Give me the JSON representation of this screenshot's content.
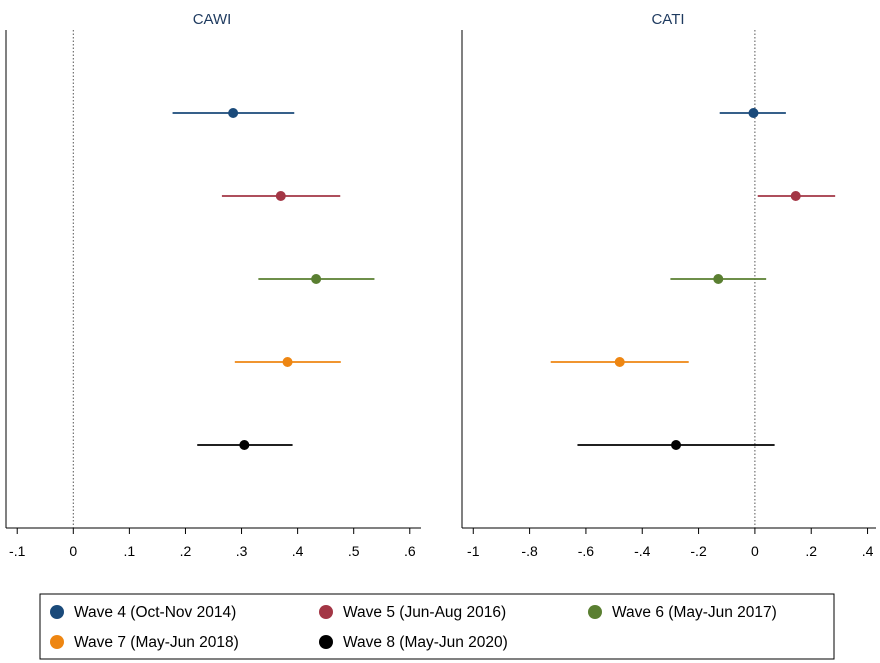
{
  "chart_data": [
    {
      "type": "scatter",
      "title": "CAWI",
      "xlim": [
        -0.12,
        0.62
      ],
      "ticks": [
        -0.1,
        0,
        0.1,
        0.2,
        0.3,
        0.4,
        0.5,
        0.6
      ],
      "tick_labels": [
        "-.1",
        "0",
        ".1",
        ".2",
        ".3",
        ".4",
        ".5",
        ".6"
      ],
      "reference_line": 0,
      "series": [
        {
          "name": "Wave 4 (Oct-Nov 2014)",
          "color": "#1a4a7a",
          "estimate": 0.285,
          "ci": [
            0.177,
            0.394
          ]
        },
        {
          "name": "Wave 5 (Jun-Aug 2016)",
          "color": "#a33645",
          "estimate": 0.37,
          "ci": [
            0.265,
            0.476
          ]
        },
        {
          "name": "Wave 6 (May-Jun 2017)",
          "color": "#5a7f31",
          "estimate": 0.433,
          "ci": [
            0.33,
            0.537
          ]
        },
        {
          "name": "Wave 7 (May-Jun 2018)",
          "color": "#ee8612",
          "estimate": 0.382,
          "ci": [
            0.288,
            0.477
          ]
        },
        {
          "name": "Wave 8 (May-Jun 2020)",
          "color": "#000000",
          "estimate": 0.305,
          "ci": [
            0.221,
            0.391
          ]
        }
      ]
    },
    {
      "type": "scatter",
      "title": "CATI",
      "xlim": [
        -1.04,
        0.43
      ],
      "ticks": [
        -1,
        -0.8,
        -0.6,
        -0.4,
        -0.2,
        0,
        0.2,
        0.4
      ],
      "tick_labels": [
        "-1",
        "-.8",
        "-.6",
        "-.4",
        "-.2",
        "0",
        ".2",
        ".4"
      ],
      "reference_line": 0,
      "series": [
        {
          "name": "Wave 4 (Oct-Nov 2014)",
          "color": "#1a4a7a",
          "estimate": -0.005,
          "ci": [
            -0.125,
            0.11
          ]
        },
        {
          "name": "Wave 5 (Jun-Aug 2016)",
          "color": "#a33645",
          "estimate": 0.145,
          "ci": [
            0.01,
            0.285
          ]
        },
        {
          "name": "Wave 6 (May-Jun 2017)",
          "color": "#5a7f31",
          "estimate": -0.13,
          "ci": [
            -0.3,
            0.04
          ]
        },
        {
          "name": "Wave 7 (May-Jun 2018)",
          "color": "#ee8612",
          "estimate": -0.48,
          "ci": [
            -0.725,
            -0.235
          ]
        },
        {
          "name": "Wave 8 (May-Jun 2020)",
          "color": "#000000",
          "estimate": -0.28,
          "ci": [
            -0.63,
            0.07
          ]
        }
      ]
    }
  ],
  "legend": {
    "placement": "bottom",
    "items": [
      {
        "label": "Wave 4 (Oct-Nov 2014)",
        "color": "#1a4a7a"
      },
      {
        "label": "Wave 5 (Jun-Aug 2016)",
        "color": "#a33645"
      },
      {
        "label": "Wave 6 (May-Jun 2017)",
        "color": "#5a7f31"
      },
      {
        "label": "Wave 7 (May-Jun 2018)",
        "color": "#ee8612"
      },
      {
        "label": "Wave 8 (May-Jun 2020)",
        "color": "#000000"
      }
    ]
  },
  "colors": {
    "title": "#1e3a5f",
    "axis": "#000000",
    "reference": "#555555"
  }
}
